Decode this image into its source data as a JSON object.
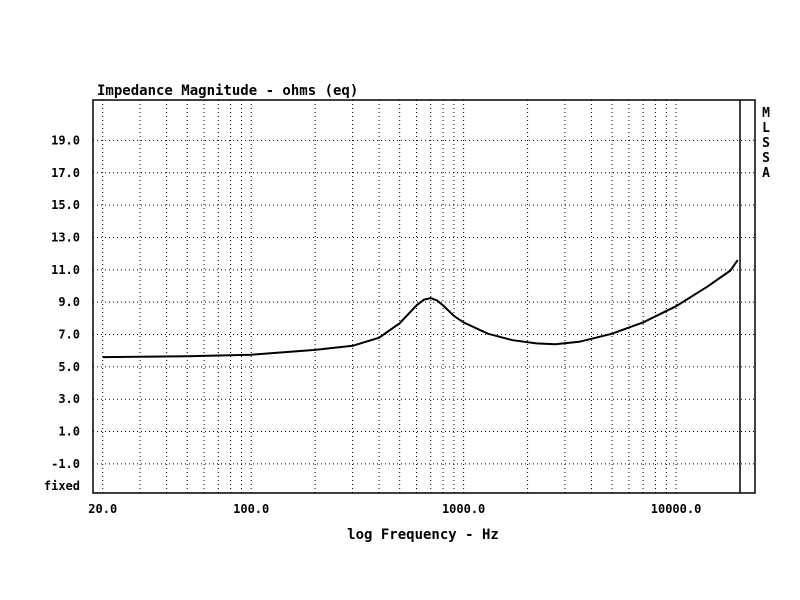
{
  "chart_data": {
    "type": "line",
    "title": "Impedance Magnitude - ohms (eq)",
    "xlabel": "log Frequency - Hz",
    "ylabel": "",
    "x_scale": "log",
    "xlim": [
      18,
      20000
    ],
    "ylim": [
      -2.8,
      21.5
    ],
    "grid": true,
    "y_ticks": [
      "19.0",
      "17.0",
      "15.0",
      "13.0",
      "11.0",
      "9.0",
      "7.0",
      "5.0",
      "3.0",
      "1.0",
      "-1.0"
    ],
    "y_tick_values": [
      19,
      17,
      15,
      13,
      11,
      9,
      7,
      5,
      3,
      1,
      -1
    ],
    "y_floor_label": "fixed",
    "x_ticks": [
      "20.0",
      "100.0",
      "1000.0",
      "10000.0"
    ],
    "x_tick_values": [
      20,
      100,
      1000,
      10000
    ],
    "side_label": "MLSSA",
    "series": [
      {
        "x": [
          20,
          50,
          100,
          200,
          300,
          400,
          500,
          600,
          650,
          700,
          750,
          800,
          900,
          1000,
          1300,
          1700,
          2200,
          2700,
          3500,
          5000,
          7000,
          10000,
          14000,
          18000,
          19500
        ],
        "y": [
          5.6,
          5.65,
          5.75,
          6.05,
          6.3,
          6.8,
          7.7,
          8.8,
          9.15,
          9.25,
          9.1,
          8.8,
          8.15,
          7.75,
          7.05,
          6.65,
          6.45,
          6.4,
          6.55,
          7.05,
          7.75,
          8.75,
          9.95,
          10.95,
          11.6
        ]
      }
    ]
  }
}
